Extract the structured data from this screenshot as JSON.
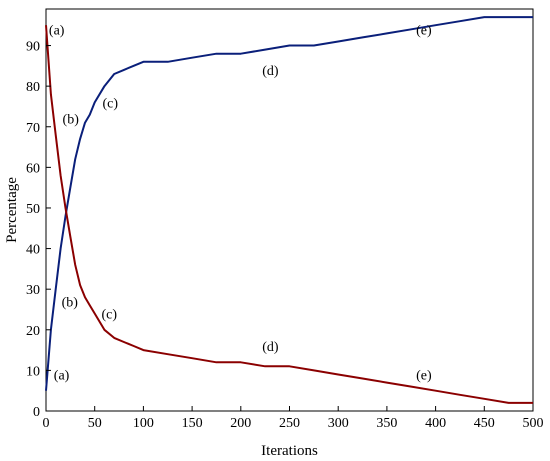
{
  "chart_data": {
    "type": "line",
    "title": "",
    "xlabel": "Iterations",
    "ylabel": "Percentage",
    "xlim": [
      0,
      500
    ],
    "ylim": [
      0,
      99
    ],
    "xticks": [
      "0",
      "50",
      "100",
      "150",
      "200",
      "250",
      "300",
      "350",
      "400",
      "450",
      "500"
    ],
    "yticks": [
      "0",
      "10",
      "20",
      "30",
      "40",
      "50",
      "60",
      "70",
      "80",
      "90"
    ],
    "grid": false,
    "legend": "none",
    "series": [
      {
        "color": "#0a1f7a",
        "x": [
          0,
          5,
          10,
          15,
          20,
          25,
          30,
          35,
          40,
          45,
          50,
          60,
          70,
          80,
          90,
          100,
          125,
          150,
          175,
          200,
          225,
          250,
          275,
          300,
          325,
          350,
          375,
          400,
          425,
          450,
          475,
          500
        ],
        "y": [
          5,
          20,
          30,
          40,
          48,
          55,
          62,
          67,
          71,
          73,
          76,
          80,
          83,
          84,
          85,
          86,
          86,
          87,
          88,
          88,
          89,
          90,
          90,
          91,
          92,
          93,
          94,
          95,
          96,
          97,
          97,
          97
        ]
      },
      {
        "color": "#8b0000",
        "x": [
          0,
          5,
          10,
          15,
          20,
          25,
          30,
          35,
          40,
          45,
          50,
          60,
          70,
          80,
          90,
          100,
          125,
          150,
          175,
          200,
          225,
          250,
          275,
          300,
          325,
          350,
          375,
          400,
          425,
          450,
          475,
          500
        ],
        "y": [
          95,
          78,
          68,
          58,
          50,
          43,
          36,
          31,
          28,
          26,
          24,
          20,
          18,
          17,
          16,
          15,
          14,
          13,
          12,
          12,
          11,
          11,
          10,
          9,
          8,
          7,
          6,
          5,
          4,
          3,
          2,
          2
        ]
      }
    ],
    "annotations": [
      {
        "text": "(a)",
        "x": 3,
        "y": 94
      },
      {
        "text": "(b)",
        "x": 17,
        "y": 72
      },
      {
        "text": "(c)",
        "x": 58,
        "y": 76
      },
      {
        "text": "(d)",
        "x": 222,
        "y": 84
      },
      {
        "text": "(e)",
        "x": 380,
        "y": 94
      },
      {
        "text": "(a)",
        "x": 8,
        "y": 9
      },
      {
        "text": "(b)",
        "x": 16,
        "y": 27
      },
      {
        "text": "(c)",
        "x": 57,
        "y": 24
      },
      {
        "text": "(d)",
        "x": 222,
        "y": 16
      },
      {
        "text": "(e)",
        "x": 380,
        "y": 9
      }
    ]
  }
}
